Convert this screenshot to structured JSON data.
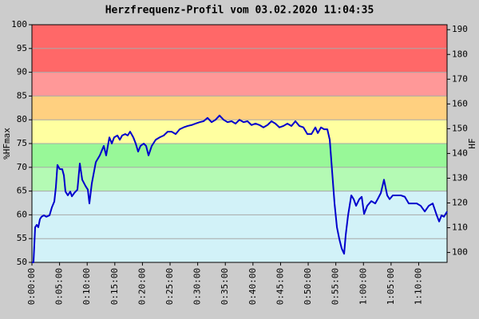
{
  "chart_data": {
    "type": "line",
    "title": "Herzfrequenz-Profil vom 03.02.2020 11:04:35",
    "ylabel": "%HFmax",
    "y2label": "HF",
    "color": "#0000cc",
    "zones": [
      {
        "from": 50,
        "to": 65,
        "color": "#d2f2f8"
      },
      {
        "from": 65,
        "to": 70,
        "color": "#b4fab4"
      },
      {
        "from": 70,
        "to": 75,
        "color": "#98f898"
      },
      {
        "from": 75,
        "to": 80,
        "color": "#ffffa0"
      },
      {
        "from": 80,
        "to": 85,
        "color": "#ffd080"
      },
      {
        "from": 85,
        "to": 90,
        "color": "#ff9898"
      },
      {
        "from": 90,
        "to": 100,
        "color": "#ff6868"
      }
    ],
    "xlim": [
      0,
      4508
    ],
    "xticks": [
      {
        "value": 0,
        "label": "0:00:00"
      },
      {
        "value": 300,
        "label": "0:05:00"
      },
      {
        "value": 600,
        "label": "0:10:00"
      },
      {
        "value": 900,
        "label": "0:15:00"
      },
      {
        "value": 1200,
        "label": "0:20:00"
      },
      {
        "value": 1500,
        "label": "0:25:00"
      },
      {
        "value": 1800,
        "label": "0:30:00"
      },
      {
        "value": 2100,
        "label": "0:35:00"
      },
      {
        "value": 2400,
        "label": "0:40:00"
      },
      {
        "value": 2700,
        "label": "0:45:00"
      },
      {
        "value": 3000,
        "label": "0:50:00"
      },
      {
        "value": 3300,
        "label": "0:55:00"
      },
      {
        "value": 3600,
        "label": "1:00:00"
      },
      {
        "value": 3900,
        "label": "1:05:00"
      },
      {
        "value": 4200,
        "label": "1:10:00"
      }
    ],
    "ylim": [
      50,
      100
    ],
    "yticks": [
      50,
      55,
      60,
      65,
      70,
      75,
      80,
      85,
      90,
      95,
      100
    ],
    "y2lim": [
      96,
      192
    ],
    "y2ticks": [
      100,
      110,
      120,
      130,
      140,
      150,
      160,
      170,
      180,
      190
    ],
    "grid": true,
    "x": [
      0,
      17,
      35,
      52,
      69,
      87,
      104,
      130,
      156,
      191,
      217,
      243,
      260,
      277,
      303,
      329,
      347,
      364,
      390,
      416,
      434,
      460,
      494,
      520,
      546,
      581,
      607,
      624,
      650,
      694,
      737,
      780,
      806,
      841,
      867,
      893,
      928,
      954,
      980,
      1014,
      1040,
      1066,
      1101,
      1127,
      1153,
      1179,
      1214,
      1240,
      1266,
      1301,
      1344,
      1387,
      1431,
      1474,
      1517,
      1561,
      1604,
      1647,
      1691,
      1734,
      1777,
      1821,
      1864,
      1907,
      1951,
      1994,
      2037,
      2081,
      2124,
      2168,
      2211,
      2254,
      2298,
      2341,
      2384,
      2428,
      2471,
      2514,
      2558,
      2601,
      2644,
      2688,
      2731,
      2774,
      2818,
      2861,
      2904,
      2948,
      2991,
      3035,
      3078,
      3104,
      3139,
      3173,
      3208,
      3234,
      3260,
      3286,
      3312,
      3338,
      3364,
      3390,
      3407,
      3433,
      3468,
      3494,
      3520,
      3555,
      3581,
      3607,
      3641,
      3685,
      3728,
      3754,
      3789,
      3823,
      3858,
      3884,
      3919,
      3962,
      4005,
      4049,
      4092,
      4136,
      4179,
      4222,
      4266,
      4309,
      4352,
      4396,
      4422,
      4448,
      4474,
      4508
    ],
    "values": [
      50,
      50,
      57.4,
      57.9,
      57.4,
      59.1,
      59.6,
      59.9,
      59.6,
      59.9,
      61.6,
      62.8,
      65.8,
      70.5,
      69.6,
      69.6,
      68.3,
      64.9,
      64.1,
      64.9,
      63.9,
      64.6,
      65.3,
      70.8,
      67.4,
      66.1,
      65.3,
      62.4,
      66.6,
      71.1,
      72.5,
      74.5,
      72.5,
      76.3,
      75.0,
      76.3,
      76.7,
      75.8,
      76.7,
      77.0,
      76.7,
      77.5,
      76.3,
      75.0,
      73.3,
      74.5,
      75.0,
      74.5,
      72.5,
      74.5,
      75.8,
      76.3,
      76.7,
      77.5,
      77.5,
      77.0,
      78.0,
      78.4,
      78.7,
      78.9,
      79.2,
      79.5,
      79.7,
      80.4,
      79.5,
      80.0,
      80.9,
      80.0,
      79.5,
      79.7,
      79.2,
      80.0,
      79.5,
      79.7,
      78.9,
      79.2,
      78.9,
      78.4,
      78.9,
      79.7,
      79.2,
      78.4,
      78.7,
      79.2,
      78.7,
      79.7,
      78.7,
      78.4,
      77.0,
      77.0,
      78.4,
      77.2,
      78.4,
      78.0,
      78.0,
      75.8,
      69.1,
      62.4,
      57.4,
      54.9,
      52.9,
      51.8,
      55.7,
      59.9,
      64.1,
      63.3,
      61.9,
      63.3,
      63.8,
      60.2,
      61.9,
      62.9,
      62.4,
      63.3,
      64.6,
      67.4,
      64.1,
      63.3,
      64.1,
      64.1,
      64.1,
      63.8,
      62.4,
      62.4,
      62.4,
      61.9,
      60.7,
      61.9,
      62.4,
      59.9,
      58.6,
      59.9,
      59.6,
      60.7
    ]
  }
}
